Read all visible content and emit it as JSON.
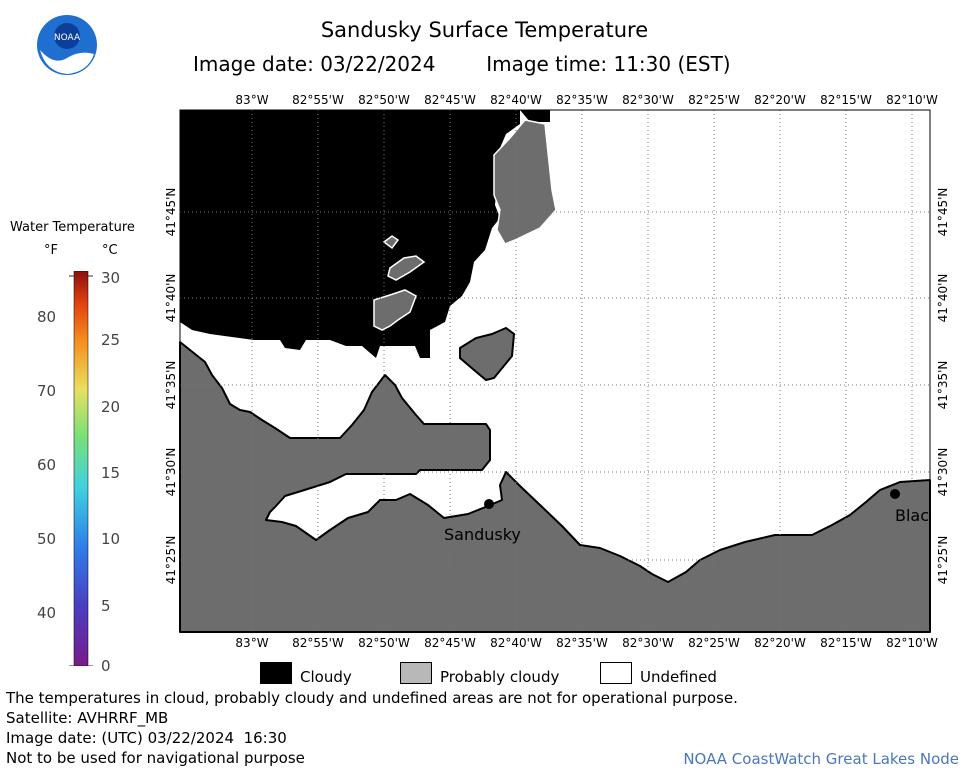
{
  "header": {
    "title": "Sandusky Surface Temperature",
    "image_date": "Image date: 03/22/2024",
    "image_time": "Image time: 11:30 (EST)",
    "logo_text": "NOAA"
  },
  "legend": {
    "title": "Water Temperature",
    "unit_f": "°F",
    "unit_c": "°C",
    "f_ticks": [
      "80",
      "70",
      "60",
      "50",
      "40"
    ],
    "c_ticks": [
      "30",
      "25",
      "20",
      "15",
      "10",
      "5",
      "0"
    ]
  },
  "map": {
    "lon_labels": [
      "83°W",
      "82°55'W",
      "82°50'W",
      "82°45'W",
      "82°40'W",
      "82°35'W",
      "82°30'W",
      "82°25'W",
      "82°20'W",
      "82°15'W",
      "82°10'W"
    ],
    "lat_labels": [
      "41°45'N",
      "41°40'N",
      "41°35'N",
      "41°30'N",
      "41°25'N"
    ],
    "places": {
      "sandusky": "Sandusky",
      "bay": "Blac"
    },
    "colors": {
      "cloudy": "#000000",
      "probably_cloudy": "#6d6d6d",
      "undefined": "#ffffff",
      "grid": "#777777"
    }
  },
  "key": {
    "cloudy": "Cloudy",
    "probably_cloudy": "Probably cloudy",
    "undefined": "Undefined"
  },
  "footer": {
    "disclaimer": "The temperatures in cloud, probably cloudy and undefined areas are not for operational purpose.",
    "satellite": "Satellite: AVHRRF_MB",
    "utc_date": "Image date: (UTC) 03/22/2024  16:30",
    "nav_warning": "Not to be used for navigational purpose",
    "credit": "NOAA CoastWatch Great Lakes Node"
  }
}
